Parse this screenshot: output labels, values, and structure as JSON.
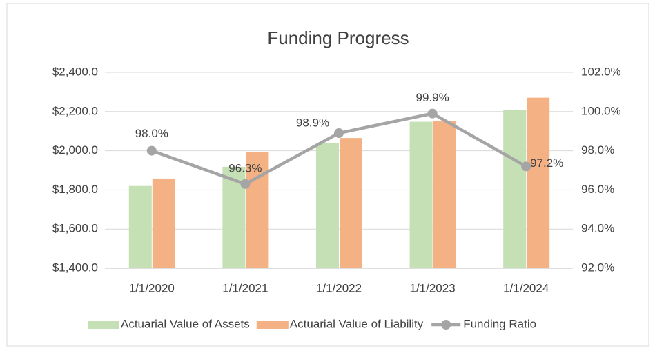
{
  "chart_data": {
    "type": "bar_line",
    "title": "Funding Progress",
    "categories": [
      "1/1/2020",
      "1/1/2021",
      "1/1/2022",
      "1/1/2023",
      "1/1/2024"
    ],
    "series": [
      {
        "name": "Actuarial Value of Assets",
        "type": "bar",
        "color": "#c5e0b4",
        "values": [
          1820,
          1918,
          2041,
          2148,
          2207
        ]
      },
      {
        "name": "Actuarial Value of Liability",
        "type": "bar",
        "color": "#f4b183",
        "values": [
          1858,
          1992,
          2065,
          2151,
          2271
        ]
      },
      {
        "name": "Funding Ratio",
        "type": "line",
        "axis": "y2",
        "color": "#a5a5a5",
        "values": [
          98.0,
          96.3,
          98.9,
          99.9,
          97.2
        ],
        "value_labels": [
          "98.0%",
          "96.3%",
          "98.9%",
          "99.9%",
          "97.2%"
        ]
      }
    ],
    "ylim": [
      1400,
      2400
    ],
    "yticks": [
      {
        "value": 1400,
        "label": "$1,400.0"
      },
      {
        "value": 1600,
        "label": "$1,600.0"
      },
      {
        "value": 1800,
        "label": "$1,800.0"
      },
      {
        "value": 2000,
        "label": "$2,000.0"
      },
      {
        "value": 2200,
        "label": "$2,200.0"
      },
      {
        "value": 2400,
        "label": "$2,400.0"
      }
    ],
    "y2lim": [
      92,
      102
    ],
    "y2ticks": [
      {
        "value": 92,
        "label": "92.0%"
      },
      {
        "value": 94,
        "label": "94.0%"
      },
      {
        "value": 96,
        "label": "96.0%"
      },
      {
        "value": 98,
        "label": "98.0%"
      },
      {
        "value": 100,
        "label": "100.0%"
      },
      {
        "value": 102,
        "label": "102.0%"
      }
    ],
    "grid": true,
    "legend": "bottom"
  }
}
